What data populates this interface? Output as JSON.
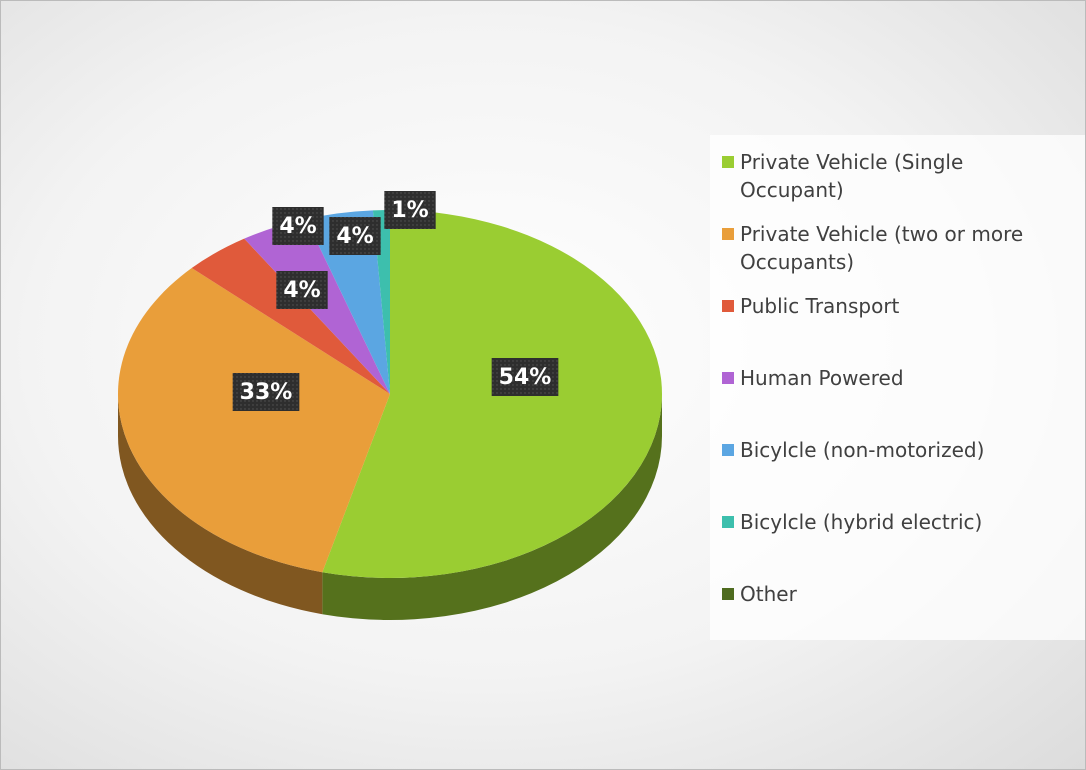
{
  "chart_data": {
    "type": "pie",
    "categories": [
      "Private Vehicle (Single Occupant)",
      "Private Vehicle (two or more Occupants)",
      "Public Transport",
      "Human Powered",
      "Bicylcle (non-motorized)",
      "Bicylcle (hybrid electric)",
      "Other"
    ],
    "values": [
      54,
      33,
      4,
      4,
      4,
      1,
      0
    ],
    "value_labels": [
      "54%",
      "33%",
      "4%",
      "4%",
      "4%",
      "1%",
      null
    ],
    "colors": [
      "#9acd32",
      "#e99e3a",
      "#e05a3b",
      "#b064d4",
      "#5ba6e2",
      "#3dbfad",
      "#4e6b1f"
    ],
    "legend": "right"
  }
}
